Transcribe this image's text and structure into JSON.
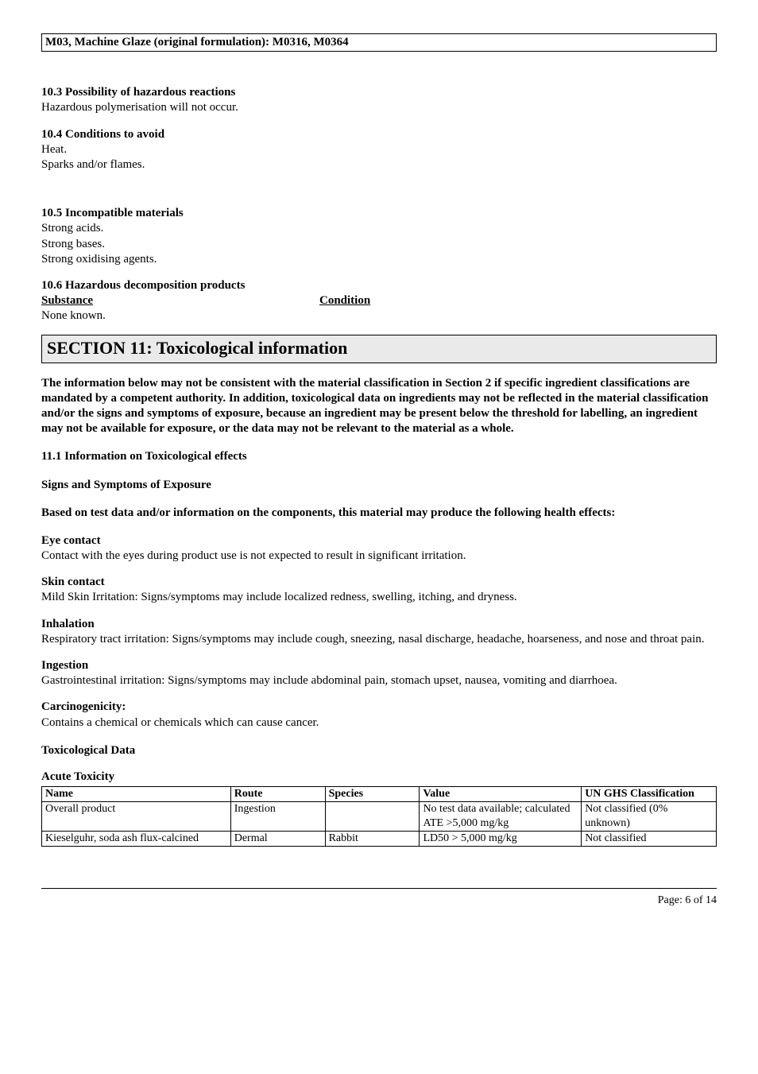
{
  "header": {
    "title": "M03, Machine Glaze (original formulation): M0316, M0364"
  },
  "s10_3": {
    "heading": "10.3 Possibility of hazardous reactions",
    "body": "Hazardous polymerisation will not occur."
  },
  "s10_4": {
    "heading": "10.4 Conditions to avoid",
    "line1": "Heat.",
    "line2": "Sparks and/or flames."
  },
  "s10_5": {
    "heading": "10.5 Incompatible materials",
    "line1": "Strong acids.",
    "line2": "Strong bases.",
    "line3": "Strong oxidising agents."
  },
  "s10_6": {
    "heading": "10.6 Hazardous decomposition products",
    "col_substance": "Substance",
    "col_condition": "Condition",
    "none": "None known."
  },
  "section11": {
    "title": "SECTION 11: Toxicological information",
    "disclaimer": "The information below may not be consistent with the material classification in Section 2 if specific ingredient classifications are mandated by a competent authority. In addition, toxicological data on ingredients may not be reflected in the material classification and/or the signs and symptoms of exposure, because an ingredient may be present below the threshold for labelling, an ingredient may not be available for exposure, or the data may not be relevant to the material as a whole.",
    "s11_1": "11.1 Information on Toxicological effects",
    "signs": "Signs and Symptoms of Exposure",
    "based_on": "Based on test data and/or information on the components, this material may produce the following health effects:",
    "eye_h": "Eye contact",
    "eye_b": "Contact with the eyes during product use is not expected to result in significant irritation.",
    "skin_h": "Skin contact",
    "skin_b": "Mild Skin Irritation: Signs/symptoms may include localized redness, swelling, itching, and dryness.",
    "inh_h": "Inhalation",
    "inh_b": "Respiratory tract irritation: Signs/symptoms may include cough, sneezing, nasal discharge, headache, hoarseness, and nose and throat pain.",
    "ing_h": "Ingestion",
    "ing_b": "Gastrointestinal irritation: Signs/symptoms may include abdominal pain, stomach upset, nausea, vomiting and diarrhoea.",
    "carc_h": "Carcinogenicity:",
    "carc_b": "Contains a chemical or chemicals which can cause cancer.",
    "toxdata_h": "Toxicological Data",
    "acute_h": "Acute Toxicity"
  },
  "tox_table": {
    "columns": [
      "Name",
      "Route",
      "Species",
      "Value",
      "UN GHS Classification"
    ],
    "col_widths": [
      "28%",
      "14%",
      "14%",
      "24%",
      "20%"
    ],
    "rows": [
      [
        "Overall product",
        "Ingestion",
        "",
        "No test data available; calculated ATE >5,000 mg/kg",
        "Not classified (0% unknown)"
      ],
      [
        "Kieselguhr, soda ash flux-calcined",
        "Dermal",
        "Rabbit",
        "LD50 > 5,000 mg/kg",
        "Not classified"
      ]
    ]
  },
  "footer": {
    "page": "Page: 6 of  14"
  }
}
